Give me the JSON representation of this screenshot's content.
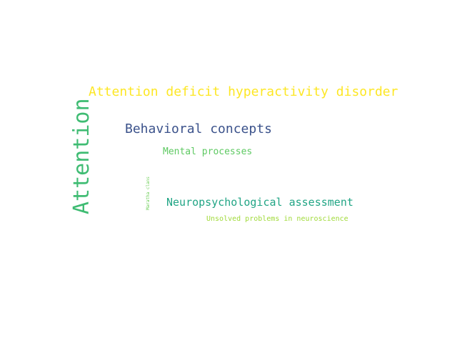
{
  "words": {
    "adhd": {
      "text": "Attention deficit hyperactivity disorder",
      "color": "#fde725"
    },
    "attention": {
      "text": "Attention",
      "color": "#3fbc73"
    },
    "behavioral": {
      "text": "Behavioral concepts",
      "color": "#3b528b"
    },
    "mental": {
      "text": "Mental processes",
      "color": "#5ec962"
    },
    "maratha": {
      "text": "Maratha clans",
      "color": "#6ece58"
    },
    "neuro": {
      "text": "Neuropsychological assessment",
      "color": "#21a585"
    },
    "unsolved": {
      "text": "Unsolved problems in neuroscience",
      "color": "#a0da39"
    }
  }
}
